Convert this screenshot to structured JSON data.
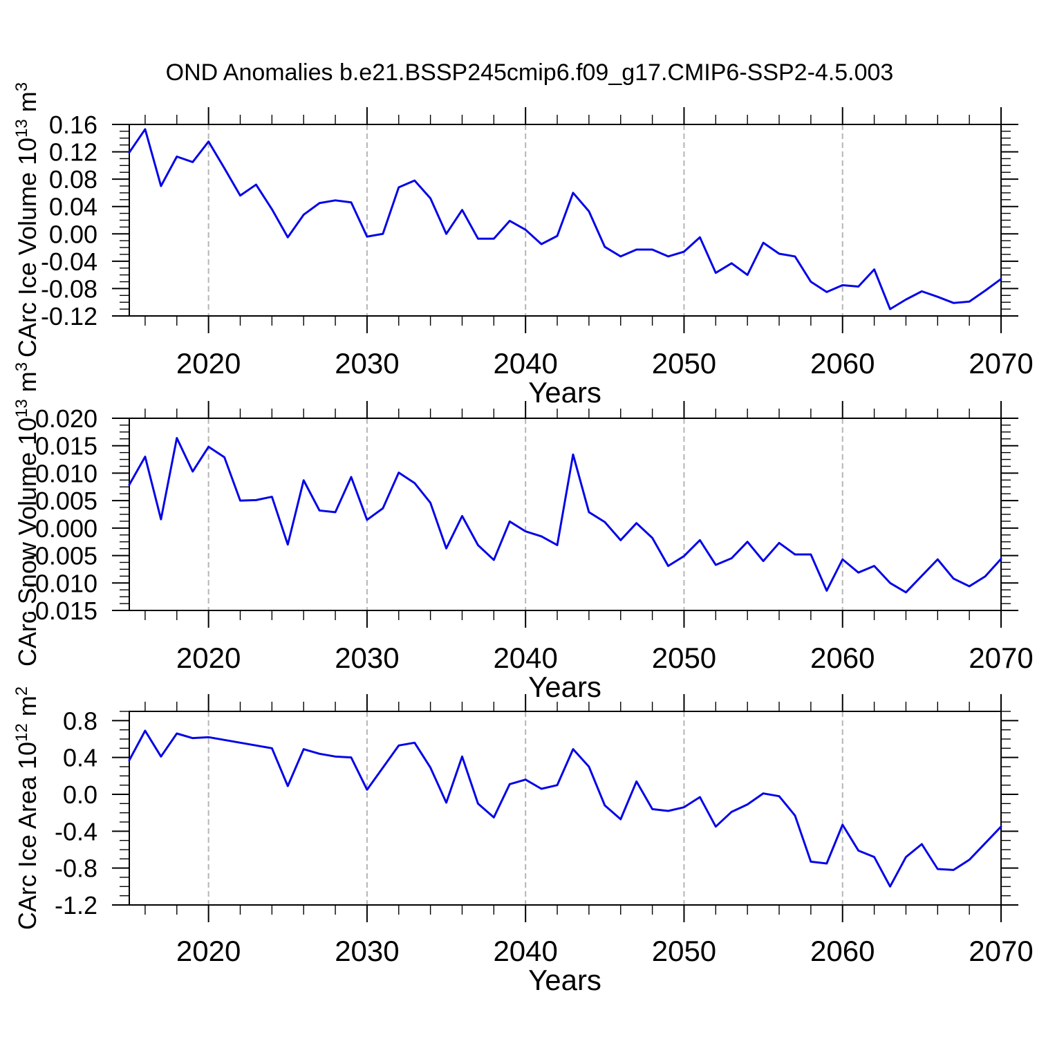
{
  "chart_data": {
    "type": "line",
    "title": "OND Anomalies b.e21.BSSP245cmip6.f09_g17.CMIP6-SSP2-4.5.003",
    "xlabel": "Years",
    "legend": "none",
    "grid": "vertical-dashed-at-decades",
    "line_color": "#0404e8",
    "grid_color": "#b5b5b5",
    "axis_color": "#000000",
    "xlim": [
      2015,
      2070
    ],
    "x_major_ticks": [
      2020,
      2030,
      2040,
      2050,
      2060,
      2070
    ],
    "x_major_tick_labels": [
      "2020",
      "2030",
      "2040",
      "2050",
      "2060",
      "2070"
    ],
    "x_minor_step": 2,
    "x_gridlines": [
      2020,
      2030,
      2040,
      2050,
      2060
    ],
    "years": [
      2015,
      2016,
      2017,
      2018,
      2019,
      2020,
      2021,
      2022,
      2023,
      2024,
      2025,
      2026,
      2027,
      2028,
      2029,
      2030,
      2031,
      2032,
      2033,
      2034,
      2035,
      2036,
      2037,
      2038,
      2039,
      2040,
      2041,
      2042,
      2043,
      2044,
      2045,
      2046,
      2047,
      2048,
      2049,
      2050,
      2051,
      2052,
      2053,
      2054,
      2055,
      2056,
      2057,
      2058,
      2059,
      2060,
      2061,
      2062,
      2063,
      2064,
      2065,
      2066,
      2067,
      2068,
      2069,
      2070
    ],
    "panels": [
      {
        "name": "ice-volume",
        "ylabel_text": "CArc Ice Volume 10^13 m^3",
        "ylabel_parts": [
          {
            "t": "CArc Ice Volume 10"
          },
          {
            "t": "13",
            "sup": true
          },
          {
            "t": " m"
          },
          {
            "t": "3",
            "sup": true
          }
        ],
        "ylim": [
          -0.12,
          0.16
        ],
        "yticks": [
          0.16,
          0.12,
          0.08,
          0.04,
          0.0,
          -0.04,
          -0.08,
          -0.12
        ],
        "ytick_labels": [
          "0.16",
          "0.12",
          "0.08",
          "0.04",
          "0.00",
          "-0.04",
          "-0.08",
          "-0.12"
        ],
        "y_minor_step": 0.01,
        "values": [
          0.119,
          0.153,
          0.07,
          0.113,
          0.105,
          0.135,
          0.096,
          0.056,
          0.072,
          0.036,
          -0.005,
          0.028,
          0.045,
          0.049,
          0.046,
          -0.004,
          0.0,
          0.068,
          0.078,
          0.052,
          0.0,
          0.035,
          -0.007,
          -0.007,
          0.019,
          0.006,
          -0.015,
          -0.003,
          0.06,
          0.033,
          -0.019,
          -0.033,
          -0.023,
          -0.023,
          -0.033,
          -0.026,
          -0.005,
          -0.057,
          -0.043,
          -0.06,
          -0.013,
          -0.029,
          -0.033,
          -0.07,
          -0.085,
          -0.075,
          -0.077,
          -0.052,
          -0.11,
          -0.096,
          -0.084,
          -0.092,
          -0.101,
          -0.099,
          -0.083,
          -0.066
        ]
      },
      {
        "name": "snow-volume",
        "ylabel_text": "CArc Snow Volume 10^13 m^3",
        "ylabel_parts": [
          {
            "t": "CArc Snow Volume 10"
          },
          {
            "t": "13",
            "sup": true
          },
          {
            "t": " m"
          },
          {
            "t": "3",
            "sup": true
          }
        ],
        "ylim": [
          -0.015,
          0.02
        ],
        "yticks": [
          0.02,
          0.015,
          0.01,
          0.005,
          0.0,
          -0.005,
          -0.01,
          -0.015
        ],
        "ytick_labels": [
          "0.020",
          "0.015",
          "0.010",
          "0.005",
          "0.000",
          "-0.005",
          "-0.010",
          "-0.015"
        ],
        "y_minor_step": 0.00125,
        "values": [
          0.0079,
          0.013,
          0.0016,
          0.0164,
          0.0103,
          0.0148,
          0.0129,
          0.005,
          0.0051,
          0.0057,
          -0.003,
          0.0087,
          0.0032,
          0.0029,
          0.0093,
          0.0015,
          0.0036,
          0.0101,
          0.0082,
          0.0046,
          -0.0037,
          0.0022,
          -0.0031,
          -0.0058,
          0.0012,
          -0.0006,
          -0.0015,
          -0.0031,
          0.0134,
          0.0029,
          0.0011,
          -0.0022,
          0.0009,
          -0.0018,
          -0.0069,
          -0.0051,
          -0.0022,
          -0.0067,
          -0.0055,
          -0.0025,
          -0.006,
          -0.0027,
          -0.0048,
          -0.0048,
          -0.0114,
          -0.0057,
          -0.0081,
          -0.0069,
          -0.01,
          -0.0117,
          -0.0087,
          -0.0057,
          -0.0092,
          -0.0106,
          -0.0088,
          -0.0056
        ]
      },
      {
        "name": "ice-area",
        "ylabel_text": "CArc Ice Area 10^12 m^2",
        "ylabel_parts": [
          {
            "t": "CArc Ice Area 10"
          },
          {
            "t": "12",
            "sup": true
          },
          {
            "t": " m"
          },
          {
            "t": "2",
            "sup": true
          }
        ],
        "ylim": [
          -1.2,
          0.9
        ],
        "yticks": [
          0.8,
          0.4,
          0.0,
          -0.4,
          -0.8,
          -1.2
        ],
        "ytick_labels": [
          "0.8",
          "0.4",
          "0.0",
          "-0.4",
          "-0.8",
          "-1.2"
        ],
        "y_minor_step": 0.1,
        "values": [
          0.37,
          0.69,
          0.41,
          0.66,
          0.61,
          0.62,
          0.59,
          0.56,
          0.53,
          0.5,
          0.09,
          0.49,
          0.44,
          0.41,
          0.4,
          0.05,
          0.29,
          0.53,
          0.56,
          0.29,
          -0.09,
          0.41,
          -0.1,
          -0.25,
          0.11,
          0.16,
          0.06,
          0.1,
          0.49,
          0.3,
          -0.12,
          -0.27,
          0.14,
          -0.16,
          -0.18,
          -0.14,
          -0.03,
          -0.35,
          -0.19,
          -0.11,
          0.01,
          -0.02,
          -0.23,
          -0.73,
          -0.75,
          -0.33,
          -0.61,
          -0.68,
          -1.0,
          -0.68,
          -0.54,
          -0.81,
          -0.82,
          -0.71,
          -0.53,
          -0.35
        ]
      }
    ]
  }
}
